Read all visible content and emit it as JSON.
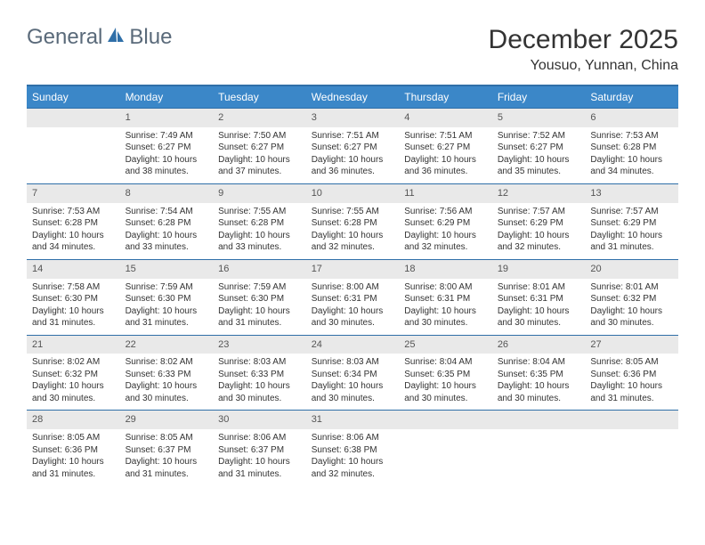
{
  "brand": {
    "part1": "General",
    "part2": "Blue"
  },
  "colors": {
    "header_bg": "#3b87c8",
    "header_border": "#2f6fa8",
    "daynum_bg": "#e9e9e9",
    "text": "#333333",
    "logo_gray": "#5a6a7a",
    "logo_blue": "#2f6fa8"
  },
  "title": "December 2025",
  "location": "Yousuo, Yunnan, China",
  "weekdays": [
    "Sunday",
    "Monday",
    "Tuesday",
    "Wednesday",
    "Thursday",
    "Friday",
    "Saturday"
  ],
  "start_offset": 1,
  "days": [
    {
      "n": 1,
      "sunrise": "7:49 AM",
      "sunset": "6:27 PM",
      "daylight": "10 hours and 38 minutes."
    },
    {
      "n": 2,
      "sunrise": "7:50 AM",
      "sunset": "6:27 PM",
      "daylight": "10 hours and 37 minutes."
    },
    {
      "n": 3,
      "sunrise": "7:51 AM",
      "sunset": "6:27 PM",
      "daylight": "10 hours and 36 minutes."
    },
    {
      "n": 4,
      "sunrise": "7:51 AM",
      "sunset": "6:27 PM",
      "daylight": "10 hours and 36 minutes."
    },
    {
      "n": 5,
      "sunrise": "7:52 AM",
      "sunset": "6:27 PM",
      "daylight": "10 hours and 35 minutes."
    },
    {
      "n": 6,
      "sunrise": "7:53 AM",
      "sunset": "6:28 PM",
      "daylight": "10 hours and 34 minutes."
    },
    {
      "n": 7,
      "sunrise": "7:53 AM",
      "sunset": "6:28 PM",
      "daylight": "10 hours and 34 minutes."
    },
    {
      "n": 8,
      "sunrise": "7:54 AM",
      "sunset": "6:28 PM",
      "daylight": "10 hours and 33 minutes."
    },
    {
      "n": 9,
      "sunrise": "7:55 AM",
      "sunset": "6:28 PM",
      "daylight": "10 hours and 33 minutes."
    },
    {
      "n": 10,
      "sunrise": "7:55 AM",
      "sunset": "6:28 PM",
      "daylight": "10 hours and 32 minutes."
    },
    {
      "n": 11,
      "sunrise": "7:56 AM",
      "sunset": "6:29 PM",
      "daylight": "10 hours and 32 minutes."
    },
    {
      "n": 12,
      "sunrise": "7:57 AM",
      "sunset": "6:29 PM",
      "daylight": "10 hours and 32 minutes."
    },
    {
      "n": 13,
      "sunrise": "7:57 AM",
      "sunset": "6:29 PM",
      "daylight": "10 hours and 31 minutes."
    },
    {
      "n": 14,
      "sunrise": "7:58 AM",
      "sunset": "6:30 PM",
      "daylight": "10 hours and 31 minutes."
    },
    {
      "n": 15,
      "sunrise": "7:59 AM",
      "sunset": "6:30 PM",
      "daylight": "10 hours and 31 minutes."
    },
    {
      "n": 16,
      "sunrise": "7:59 AM",
      "sunset": "6:30 PM",
      "daylight": "10 hours and 31 minutes."
    },
    {
      "n": 17,
      "sunrise": "8:00 AM",
      "sunset": "6:31 PM",
      "daylight": "10 hours and 30 minutes."
    },
    {
      "n": 18,
      "sunrise": "8:00 AM",
      "sunset": "6:31 PM",
      "daylight": "10 hours and 30 minutes."
    },
    {
      "n": 19,
      "sunrise": "8:01 AM",
      "sunset": "6:31 PM",
      "daylight": "10 hours and 30 minutes."
    },
    {
      "n": 20,
      "sunrise": "8:01 AM",
      "sunset": "6:32 PM",
      "daylight": "10 hours and 30 minutes."
    },
    {
      "n": 21,
      "sunrise": "8:02 AM",
      "sunset": "6:32 PM",
      "daylight": "10 hours and 30 minutes."
    },
    {
      "n": 22,
      "sunrise": "8:02 AM",
      "sunset": "6:33 PM",
      "daylight": "10 hours and 30 minutes."
    },
    {
      "n": 23,
      "sunrise": "8:03 AM",
      "sunset": "6:33 PM",
      "daylight": "10 hours and 30 minutes."
    },
    {
      "n": 24,
      "sunrise": "8:03 AM",
      "sunset": "6:34 PM",
      "daylight": "10 hours and 30 minutes."
    },
    {
      "n": 25,
      "sunrise": "8:04 AM",
      "sunset": "6:35 PM",
      "daylight": "10 hours and 30 minutes."
    },
    {
      "n": 26,
      "sunrise": "8:04 AM",
      "sunset": "6:35 PM",
      "daylight": "10 hours and 30 minutes."
    },
    {
      "n": 27,
      "sunrise": "8:05 AM",
      "sunset": "6:36 PM",
      "daylight": "10 hours and 31 minutes."
    },
    {
      "n": 28,
      "sunrise": "8:05 AM",
      "sunset": "6:36 PM",
      "daylight": "10 hours and 31 minutes."
    },
    {
      "n": 29,
      "sunrise": "8:05 AM",
      "sunset": "6:37 PM",
      "daylight": "10 hours and 31 minutes."
    },
    {
      "n": 30,
      "sunrise": "8:06 AM",
      "sunset": "6:37 PM",
      "daylight": "10 hours and 31 minutes."
    },
    {
      "n": 31,
      "sunrise": "8:06 AM",
      "sunset": "6:38 PM",
      "daylight": "10 hours and 32 minutes."
    }
  ],
  "labels": {
    "sunrise": "Sunrise:",
    "sunset": "Sunset:",
    "daylight": "Daylight:"
  }
}
